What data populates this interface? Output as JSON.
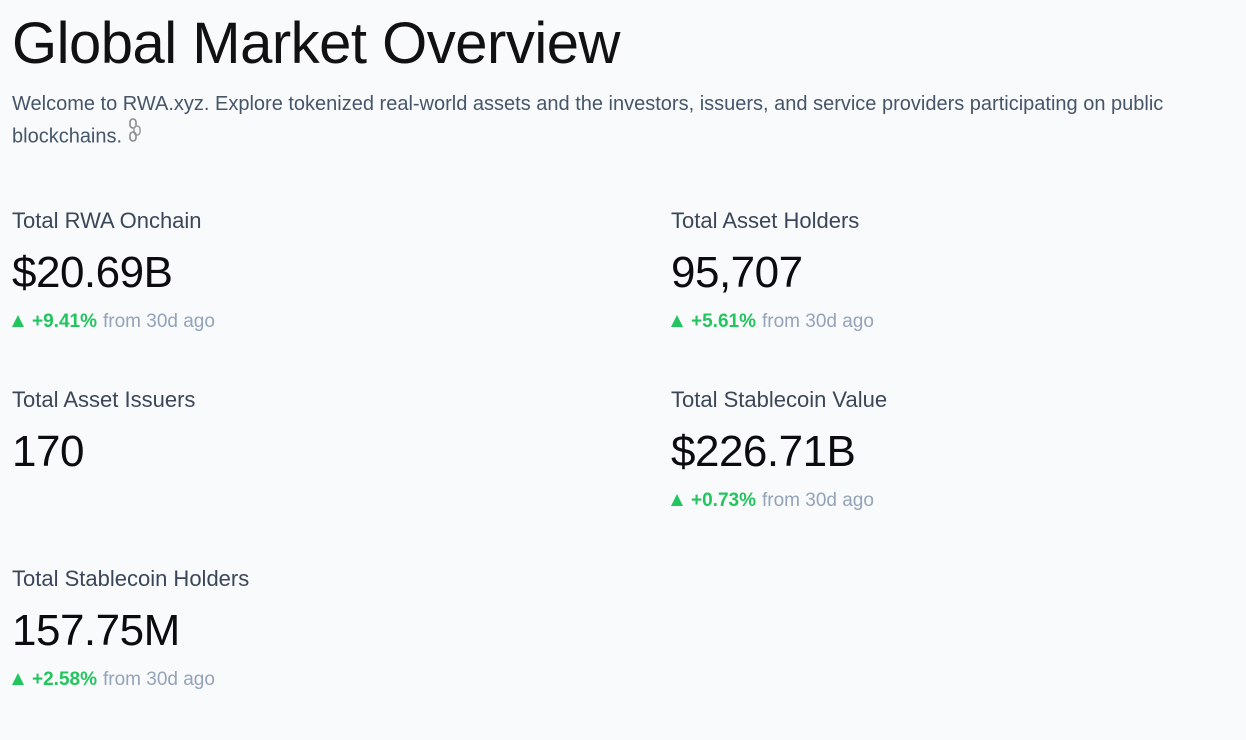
{
  "header": {
    "title": "Global Market Overview",
    "intro": "Welcome to RWA.xyz. Explore tokenized real-world assets and the investors, issuers, and service providers participating on public blockchains."
  },
  "stats": {
    "rwa_onchain": {
      "label": "Total RWA Onchain",
      "value": "$20.69B",
      "change": "+9.41%",
      "suffix": "from 30d ago"
    },
    "asset_holders": {
      "label": "Total Asset Holders",
      "value": "95,707",
      "change": "+5.61%",
      "suffix": "from 30d ago"
    },
    "asset_issuers": {
      "label": "Total Asset Issuers",
      "value": "170"
    },
    "stablecoin_value": {
      "label": "Total Stablecoin Value",
      "value": "$226.71B",
      "change": "+0.73%",
      "suffix": "from 30d ago"
    },
    "stablecoin_holders": {
      "label": "Total Stablecoin Holders",
      "value": "157.75M",
      "change": "+2.58%",
      "suffix": "from 30d ago"
    }
  },
  "colors": {
    "positive": "#22c55e",
    "muted": "#94a3b8",
    "background": "#f8fafc"
  },
  "icons": {
    "intro_emoji": "chain-link-icon",
    "trend": "triangle-up-icon"
  }
}
